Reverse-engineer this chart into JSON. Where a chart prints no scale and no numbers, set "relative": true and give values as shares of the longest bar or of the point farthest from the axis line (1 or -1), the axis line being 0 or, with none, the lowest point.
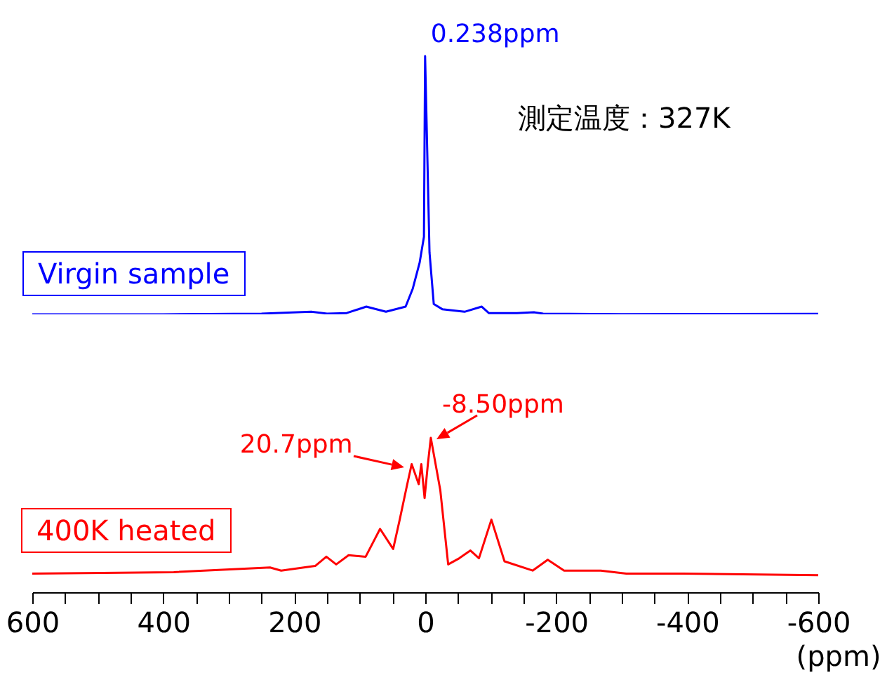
{
  "chart_data": [
    {
      "type": "line",
      "relative": true,
      "xlim": [
        600,
        -600
      ],
      "tick_labels": false,
      "series": [
        {
          "name": "Virgin sample",
          "color": "#0000ff",
          "x": [
            600,
            400,
            250,
            174,
            150,
            120,
            90,
            60,
            30,
            19,
            8.6,
            2,
            0.238,
            -6.5,
            -13,
            -26,
            -60,
            -86,
            -97,
            -140,
            -166,
            -180,
            -300,
            -600
          ],
          "values": [
            0,
            0,
            0.003,
            0.01,
            0.003,
            0.005,
            0.03,
            0.01,
            0.03,
            0.1,
            0.2,
            0.3,
            1,
            0.24,
            0.04,
            0.02,
            0.01,
            0.03,
            0.005,
            0.005,
            0.008,
            0.003,
            0.001,
            0.002
          ]
        }
      ],
      "annotations": [
        {
          "text": "0.238ppm",
          "x": 0.238,
          "y": 1
        },
        "測定温度：327K"
      ]
    },
    {
      "type": "line",
      "relative": true,
      "xlim": [
        600,
        -600
      ],
      "xlabel": "(ppm)",
      "tick_labels": "x",
      "xticks": [
        600,
        {
          "value": 550,
          "label": null
        },
        {
          "value": 500,
          "label": null
        },
        {
          "value": 450,
          "label": null
        },
        400,
        {
          "value": 350,
          "label": null
        },
        {
          "value": 300,
          "label": null
        },
        {
          "value": 250,
          "label": null
        },
        200,
        {
          "value": 150,
          "label": null
        },
        {
          "value": 100,
          "label": null
        },
        {
          "value": 50,
          "label": null
        },
        0,
        {
          "value": -50,
          "label": null
        },
        {
          "value": -100,
          "label": null
        },
        {
          "value": -150,
          "label": null
        },
        -200,
        {
          "value": -250,
          "label": null
        },
        {
          "value": -300,
          "label": null
        },
        {
          "value": -350,
          "label": null
        },
        -400,
        {
          "value": -450,
          "label": null
        },
        {
          "value": -500,
          "label": null
        },
        {
          "value": -550,
          "label": null
        },
        -600
      ],
      "series": [
        {
          "name": "400K heated",
          "color": "#ff0000",
          "x": [
            600,
            384,
            237,
            220,
            168,
            151,
            136,
            117,
            91,
            69,
            49,
            39,
            28,
            20.7,
            10,
            6,
            1,
            -4,
            -8.5,
            -23,
            -35,
            -52,
            -69,
            -82,
            -101,
            -121,
            -164,
            -187,
            -212,
            -268,
            -307,
            -393,
            -600
          ],
          "values": [
            0.12,
            0.13,
            0.16,
            0.14,
            0.17,
            0.23,
            0.18,
            0.24,
            0.23,
            0.41,
            0.28,
            0.47,
            0.69,
            0.83,
            0.7,
            0.83,
            0.61,
            0.83,
            1,
            0.66,
            0.18,
            0.22,
            0.27,
            0.22,
            0.47,
            0.2,
            0.14,
            0.21,
            0.14,
            0.14,
            0.12,
            0.12,
            0.11
          ]
        }
      ],
      "annotations": [
        {
          "text": "20.7ppm",
          "x": 20.7,
          "y": 0.83
        },
        {
          "text": "-8.50ppm",
          "x": -8.5,
          "y": 1
        }
      ]
    }
  ]
}
